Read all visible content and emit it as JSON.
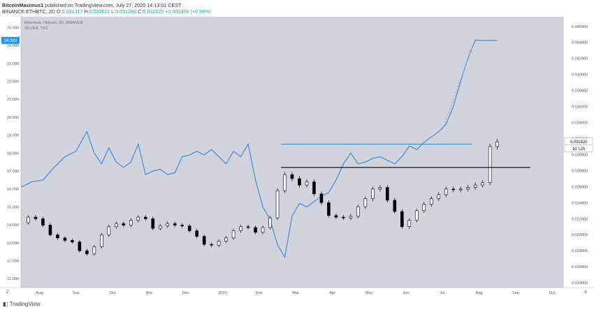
{
  "header": {
    "author": "BitcoinMaximus1",
    "published": "published on TradingView.com, July 27, 2020 14:13:01 CEST",
    "symbol": "BINANCE:ETHBTC, 2D",
    "ohlc": {
      "O_label": "O:",
      "O": "0.031317",
      "H_label": "H:",
      "H": "0.032611",
      "L_label": "L:",
      "L": "0.031290",
      "C_label": "C:",
      "C": "0.031620",
      "change": "+0.000306 (+0.98%)"
    }
  },
  "footer": {
    "brand": "TradingView"
  },
  "colors": {
    "plot_bg": "#d1d4dc",
    "silver_line": "#3d8fd9",
    "candle": "#000000",
    "price_tag_bg": "#ffffff",
    "left_tag_bg": "#2196f3"
  },
  "chart_data": {
    "type": "line",
    "legend": [
      "Ethereum / Bitcoin, 2D, BINANCE",
      "SILVER, TVC"
    ],
    "x_ticks": [
      "Aug",
      "Sep",
      "Oct",
      "Nov",
      "Dec",
      "2020",
      "Feb",
      "Mar",
      "Apr",
      "May",
      "Jun",
      "Jul",
      "Aug",
      "Sep",
      "Oct"
    ],
    "left_axis_ticks": [
      "25.000",
      "24.000",
      "23.000",
      "22.000",
      "21.000",
      "20.000",
      "19.000",
      "18.000",
      "17.000",
      "16.000",
      "15.000",
      "14.000",
      "13.000",
      "12.000",
      "11.000"
    ],
    "left_ylim": [
      10.5,
      25.6
    ],
    "right_axis_ticks": [
      "0.046000",
      "0.044000",
      "0.042000",
      "0.040000",
      "0.038000",
      "0.036000",
      "0.034000",
      "0.032000",
      "0.030000",
      "0.028000",
      "0.026000",
      "0.024000",
      "0.022000",
      "0.020000",
      "0.018000",
      "0.016000",
      "0.014000"
    ],
    "right_ylim": [
      0.0134,
      0.0472
    ],
    "silver_tag": "24.283",
    "ethbtc_tag": "0.031620",
    "countdown_tag": "1d 12h",
    "x_range": [
      0,
      14.8
    ],
    "series": [
      {
        "name": "SILVER, TVC",
        "axis": "left",
        "x": [
          0,
          0.3,
          0.6,
          0.9,
          1.2,
          1.5,
          1.8,
          2.0,
          2.2,
          2.4,
          2.6,
          2.8,
          3.0,
          3.2,
          3.4,
          3.6,
          3.8,
          4.0,
          4.2,
          4.4,
          4.6,
          4.8,
          5.0,
          5.2,
          5.4,
          5.6,
          5.8,
          6.0,
          6.2,
          6.4,
          6.6,
          6.8,
          7.0,
          7.2,
          7.4,
          7.6,
          7.8,
          8.0,
          8.2,
          8.4,
          8.6,
          8.8,
          9.0,
          9.2,
          9.4,
          9.6,
          9.8,
          10.0,
          10.2,
          10.4,
          10.6,
          10.8,
          11.0,
          11.2,
          11.4,
          11.6,
          11.8,
          12.0,
          12.2,
          12.4,
          12.6,
          12.8,
          13.0
        ],
        "y": [
          16.1,
          16.4,
          16.5,
          17.2,
          17.8,
          18.1,
          19.2,
          18.0,
          17.4,
          18.3,
          17.5,
          17.2,
          17.5,
          18.5,
          16.8,
          17.0,
          17.1,
          16.8,
          16.9,
          17.8,
          17.9,
          18.1,
          17.9,
          18.2,
          17.8,
          17.4,
          18.1,
          17.8,
          18.5,
          16.5,
          15.0,
          14.3,
          12.9,
          12.2,
          14.5,
          15.2,
          15.0,
          15.3,
          15.6,
          15.8,
          16.5,
          17.4,
          18.0,
          17.4,
          17.5,
          17.7,
          17.8,
          17.6,
          17.4,
          17.8,
          18.4,
          18.2,
          18.6,
          18.9,
          19.2,
          19.6,
          20.6,
          22.0,
          23.3,
          24.3,
          24.28,
          24.28,
          24.28
        ]
      },
      {
        "name": "Ethereum / Bitcoin, 2D, BINANCE",
        "axis": "right",
        "x": [
          0,
          0.2,
          0.4,
          0.6,
          0.8,
          1.0,
          1.2,
          1.4,
          1.6,
          1.8,
          2.0,
          2.2,
          2.4,
          2.6,
          2.8,
          3.0,
          3.2,
          3.4,
          3.6,
          3.8,
          4.0,
          4.2,
          4.4,
          4.6,
          4.8,
          5.0,
          5.2,
          5.4,
          5.6,
          5.8,
          6.0,
          6.2,
          6.4,
          6.6,
          6.8,
          7.0,
          7.2,
          7.4,
          7.6,
          7.8,
          8.0,
          8.2,
          8.4,
          8.6,
          8.8,
          9.0,
          9.2,
          9.4,
          9.6,
          9.8,
          10.0,
          10.2,
          10.4,
          10.6,
          10.8,
          11.0,
          11.2,
          11.4,
          11.6,
          11.8,
          12.0,
          12.2,
          12.4,
          12.6,
          12.8,
          13.0
        ],
        "y": [
          0.0215,
          0.0222,
          0.022,
          0.0212,
          0.02,
          0.0196,
          0.0193,
          0.0191,
          0.018,
          0.0176,
          0.0185,
          0.02,
          0.021,
          0.0214,
          0.0212,
          0.0218,
          0.0222,
          0.022,
          0.0208,
          0.0211,
          0.0214,
          0.0212,
          0.0211,
          0.0205,
          0.0198,
          0.0188,
          0.0187,
          0.0192,
          0.0196,
          0.0205,
          0.021,
          0.0209,
          0.0203,
          0.0209,
          0.0221,
          0.0255,
          0.0275,
          0.027,
          0.0262,
          0.0266,
          0.0251,
          0.024,
          0.0224,
          0.0222,
          0.0221,
          0.0223,
          0.0235,
          0.0245,
          0.0257,
          0.0259,
          0.0243,
          0.0229,
          0.021,
          0.0218,
          0.023,
          0.0238,
          0.0245,
          0.025,
          0.0257,
          0.0256,
          0.0257,
          0.0259,
          0.0262,
          0.0265,
          0.031,
          0.0316
        ]
      }
    ],
    "annotations": [
      {
        "type": "hline",
        "axis": "left",
        "y": 18.5,
        "x_from": 7.1,
        "x_to": 12.3,
        "color": "#3d8fd9"
      },
      {
        "type": "hline",
        "axis": "right",
        "y": 0.0284,
        "x_from": 7.1,
        "x_to": 13.9,
        "color": "#000000"
      },
      {
        "type": "dashed-arrow",
        "axis": "left",
        "x_from": 11.5,
        "y_from": 19.3,
        "x_to": 12.3,
        "y_to": 23.8,
        "color": "#9aa8d0"
      }
    ]
  }
}
